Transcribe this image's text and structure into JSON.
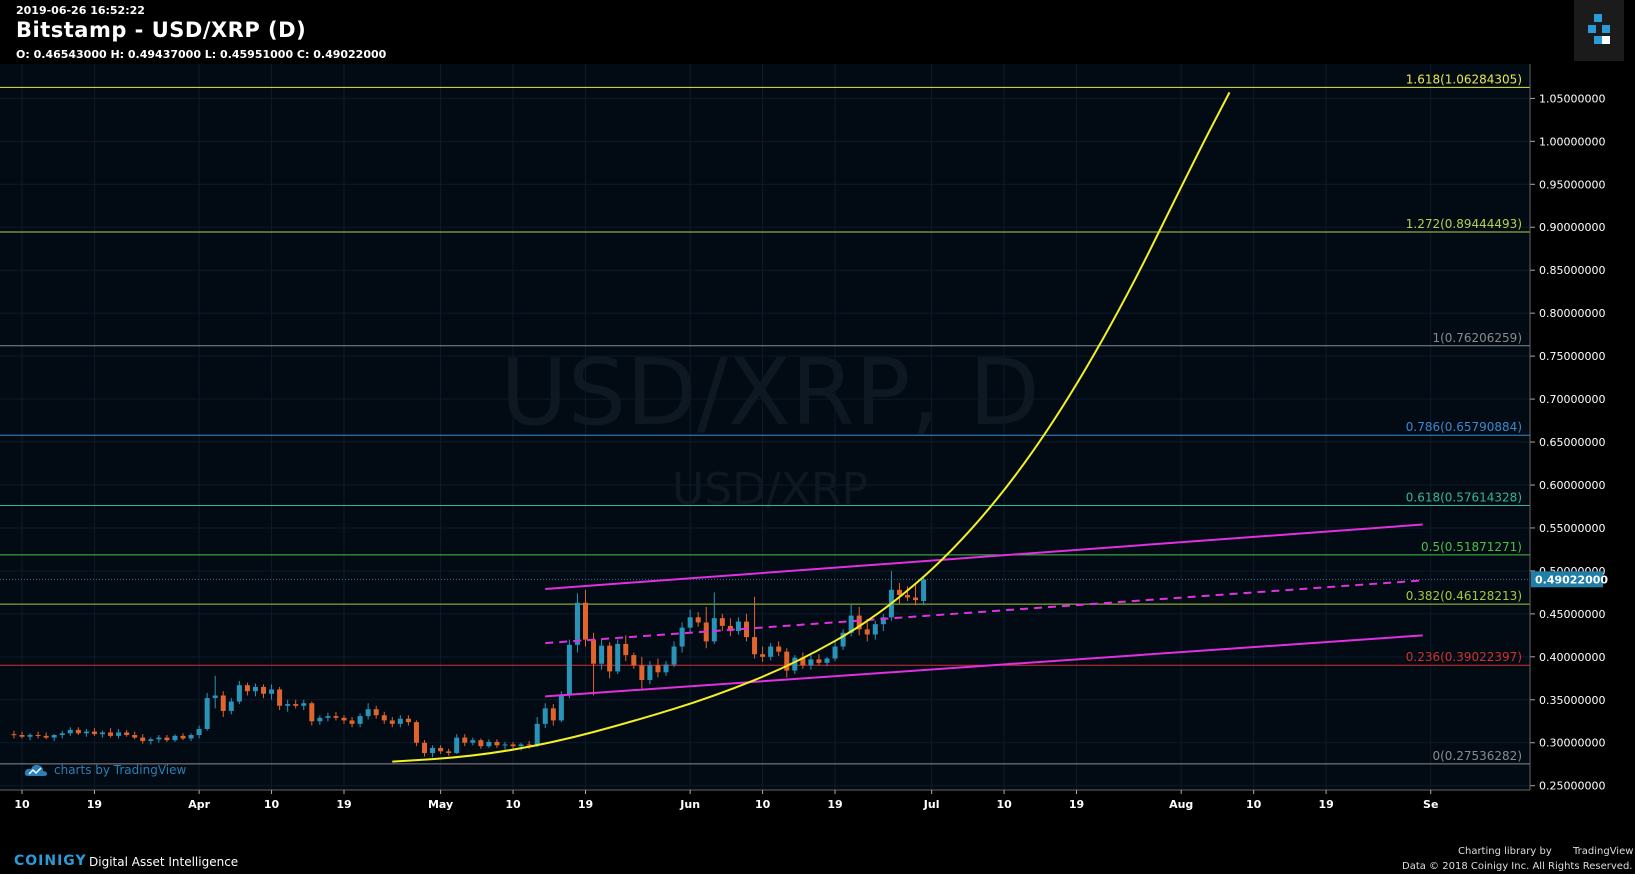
{
  "header": {
    "timestamp": "2019-06-26 16:52:22",
    "title": "Bitstamp - USD/XRP (D)",
    "ohlc": "O: 0.46543000 H: 0.49437000 L: 0.45951000 C: 0.49022000"
  },
  "footer": {
    "brand": "COINIGY",
    "tagline": "Digital Asset Intelligence",
    "charting": "Charting library by",
    "tv_brand": "TradingView",
    "copyright": "Data © 2018  Coinigy Inc. All Rights Reserved."
  },
  "colors": {
    "background": "#020b14",
    "grid": "#0d1b29",
    "bull": "#2a94b8",
    "bear": "#e0642c",
    "channel": "#e030e0",
    "curve": "#f5f022",
    "price_tag": "#1f7fa8"
  },
  "chart_data": {
    "type": "candlestick",
    "title": "Bitstamp - USD/XRP (D)",
    "watermark": "USD/XRP, D",
    "watermark_sub": "USD/XRP",
    "attribution": "charts by TradingView",
    "ylim": [
      0.245,
      1.09
    ],
    "y_ticks": [
      "1.05000000",
      "1.00000000",
      "0.95000000",
      "0.90000000",
      "0.85000000",
      "0.80000000",
      "0.75000000",
      "0.70000000",
      "0.65000000",
      "0.60000000",
      "0.55000000",
      "0.50000000",
      "0.45000000",
      "0.40000000",
      "0.35000000",
      "0.30000000",
      "0.25000000"
    ],
    "x_ticks": [
      {
        "label": "10",
        "date": "2019-03-10"
      },
      {
        "label": "19",
        "date": "2019-03-19"
      },
      {
        "label": "Apr",
        "date": "2019-04-01"
      },
      {
        "label": "10",
        "date": "2019-04-10"
      },
      {
        "label": "19",
        "date": "2019-04-19"
      },
      {
        "label": "May",
        "date": "2019-05-01"
      },
      {
        "label": "10",
        "date": "2019-05-10"
      },
      {
        "label": "19",
        "date": "2019-05-19"
      },
      {
        "label": "Jun",
        "date": "2019-06-01"
      },
      {
        "label": "10",
        "date": "2019-06-10"
      },
      {
        "label": "19",
        "date": "2019-06-19"
      },
      {
        "label": "Jul",
        "date": "2019-07-01"
      },
      {
        "label": "10",
        "date": "2019-07-10"
      },
      {
        "label": "19",
        "date": "2019-07-19"
      },
      {
        "label": "Aug",
        "date": "2019-08-01"
      },
      {
        "label": "10",
        "date": "2019-08-10"
      },
      {
        "label": "19",
        "date": "2019-08-19"
      },
      {
        "label": "Se",
        "date": "2019-09-01"
      }
    ],
    "current_price": "0.49022000",
    "fib_levels": [
      {
        "label": "1.618(1.06284305)",
        "value": 1.06284305,
        "color": "#e8e84a"
      },
      {
        "label": "1.272(0.89444493)",
        "value": 0.89444493,
        "color": "#b6d04a"
      },
      {
        "label": "1(0.76206259)",
        "value": 0.76206259,
        "color": "#8a8a8a"
      },
      {
        "label": "0.786(0.65790884)",
        "value": 0.65790884,
        "color": "#3a8ad0"
      },
      {
        "label": "0.618(0.57614328)",
        "value": 0.57614328,
        "color": "#30b898"
      },
      {
        "label": "0.5(0.51871271)",
        "value": 0.51871271,
        "color": "#48c048"
      },
      {
        "label": "0.382(0.46128213)",
        "value": 0.46128213,
        "color": "#a6c83a"
      },
      {
        "label": "0.236(0.39022397)",
        "value": 0.39022397,
        "color": "#d03030"
      },
      {
        "label": "0(0.27536282)",
        "value": 0.27536282,
        "color": "#8a8a8a"
      }
    ],
    "channel": {
      "upper": [
        {
          "date": "2019-05-14",
          "y": 0.479
        },
        {
          "date": "2019-08-31",
          "y": 0.554
        }
      ],
      "middle": [
        {
          "date": "2019-05-14",
          "y": 0.416
        },
        {
          "date": "2019-08-31",
          "y": 0.489
        }
      ],
      "lower": [
        {
          "date": "2019-05-14",
          "y": 0.354
        },
        {
          "date": "2019-08-31",
          "y": 0.425
        }
      ]
    },
    "curve": [
      {
        "date": "2019-04-25",
        "y": 0.278
      },
      {
        "date": "2019-05-05",
        "y": 0.284
      },
      {
        "date": "2019-05-15",
        "y": 0.3
      },
      {
        "date": "2019-05-25",
        "y": 0.325
      },
      {
        "date": "2019-06-04",
        "y": 0.354
      },
      {
        "date": "2019-06-14",
        "y": 0.392
      },
      {
        "date": "2019-06-24",
        "y": 0.445
      },
      {
        "date": "2019-07-04",
        "y": 0.525
      },
      {
        "date": "2019-07-14",
        "y": 0.64
      },
      {
        "date": "2019-07-24",
        "y": 0.795
      },
      {
        "date": "2019-08-03",
        "y": 0.985
      },
      {
        "date": "2019-08-07",
        "y": 1.057
      }
    ],
    "candles": [
      {
        "d": "2019-03-09",
        "o": 0.31,
        "h": 0.314,
        "l": 0.305,
        "c": 0.309
      },
      {
        "d": "2019-03-10",
        "o": 0.309,
        "h": 0.313,
        "l": 0.305,
        "c": 0.307
      },
      {
        "d": "2019-03-11",
        "o": 0.307,
        "h": 0.311,
        "l": 0.303,
        "c": 0.309
      },
      {
        "d": "2019-03-12",
        "o": 0.309,
        "h": 0.313,
        "l": 0.305,
        "c": 0.308
      },
      {
        "d": "2019-03-13",
        "o": 0.308,
        "h": 0.312,
        "l": 0.304,
        "c": 0.306
      },
      {
        "d": "2019-03-14",
        "o": 0.306,
        "h": 0.31,
        "l": 0.302,
        "c": 0.309
      },
      {
        "d": "2019-03-15",
        "o": 0.309,
        "h": 0.314,
        "l": 0.305,
        "c": 0.311
      },
      {
        "d": "2019-03-16",
        "o": 0.311,
        "h": 0.318,
        "l": 0.308,
        "c": 0.315
      },
      {
        "d": "2019-03-17",
        "o": 0.315,
        "h": 0.318,
        "l": 0.309,
        "c": 0.311
      },
      {
        "d": "2019-03-18",
        "o": 0.311,
        "h": 0.316,
        "l": 0.307,
        "c": 0.313
      },
      {
        "d": "2019-03-19",
        "o": 0.313,
        "h": 0.317,
        "l": 0.308,
        "c": 0.31
      },
      {
        "d": "2019-03-20",
        "o": 0.31,
        "h": 0.314,
        "l": 0.306,
        "c": 0.312
      },
      {
        "d": "2019-03-21",
        "o": 0.312,
        "h": 0.317,
        "l": 0.306,
        "c": 0.308
      },
      {
        "d": "2019-03-22",
        "o": 0.308,
        "h": 0.316,
        "l": 0.305,
        "c": 0.312
      },
      {
        "d": "2019-03-23",
        "o": 0.312,
        "h": 0.315,
        "l": 0.307,
        "c": 0.309
      },
      {
        "d": "2019-03-24",
        "o": 0.309,
        "h": 0.313,
        "l": 0.304,
        "c": 0.306
      },
      {
        "d": "2019-03-25",
        "o": 0.306,
        "h": 0.31,
        "l": 0.299,
        "c": 0.302
      },
      {
        "d": "2019-03-26",
        "o": 0.302,
        "h": 0.306,
        "l": 0.298,
        "c": 0.304
      },
      {
        "d": "2019-03-27",
        "o": 0.304,
        "h": 0.309,
        "l": 0.3,
        "c": 0.306
      },
      {
        "d": "2019-03-28",
        "o": 0.306,
        "h": 0.309,
        "l": 0.301,
        "c": 0.303
      },
      {
        "d": "2019-03-29",
        "o": 0.303,
        "h": 0.31,
        "l": 0.301,
        "c": 0.308
      },
      {
        "d": "2019-03-30",
        "o": 0.308,
        "h": 0.311,
        "l": 0.303,
        "c": 0.305
      },
      {
        "d": "2019-03-31",
        "o": 0.305,
        "h": 0.311,
        "l": 0.302,
        "c": 0.309
      },
      {
        "d": "2019-04-01",
        "o": 0.309,
        "h": 0.32,
        "l": 0.305,
        "c": 0.316
      },
      {
        "d": "2019-04-02",
        "o": 0.316,
        "h": 0.358,
        "l": 0.314,
        "c": 0.352
      },
      {
        "d": "2019-04-03",
        "o": 0.352,
        "h": 0.378,
        "l": 0.34,
        "c": 0.355
      },
      {
        "d": "2019-04-04",
        "o": 0.355,
        "h": 0.36,
        "l": 0.33,
        "c": 0.337
      },
      {
        "d": "2019-04-05",
        "o": 0.337,
        "h": 0.352,
        "l": 0.333,
        "c": 0.348
      },
      {
        "d": "2019-04-06",
        "o": 0.348,
        "h": 0.372,
        "l": 0.345,
        "c": 0.367
      },
      {
        "d": "2019-04-07",
        "o": 0.367,
        "h": 0.37,
        "l": 0.355,
        "c": 0.36
      },
      {
        "d": "2019-04-08",
        "o": 0.36,
        "h": 0.369,
        "l": 0.354,
        "c": 0.365
      },
      {
        "d": "2019-04-09",
        "o": 0.365,
        "h": 0.368,
        "l": 0.352,
        "c": 0.357
      },
      {
        "d": "2019-04-10",
        "o": 0.357,
        "h": 0.368,
        "l": 0.35,
        "c": 0.362
      },
      {
        "d": "2019-04-11",
        "o": 0.362,
        "h": 0.365,
        "l": 0.338,
        "c": 0.343
      },
      {
        "d": "2019-04-12",
        "o": 0.343,
        "h": 0.35,
        "l": 0.336,
        "c": 0.345
      },
      {
        "d": "2019-04-13",
        "o": 0.345,
        "h": 0.35,
        "l": 0.34,
        "c": 0.343
      },
      {
        "d": "2019-04-14",
        "o": 0.343,
        "h": 0.35,
        "l": 0.338,
        "c": 0.346
      },
      {
        "d": "2019-04-15",
        "o": 0.346,
        "h": 0.348,
        "l": 0.32,
        "c": 0.325
      },
      {
        "d": "2019-04-16",
        "o": 0.325,
        "h": 0.332,
        "l": 0.321,
        "c": 0.329
      },
      {
        "d": "2019-04-17",
        "o": 0.329,
        "h": 0.335,
        "l": 0.325,
        "c": 0.331
      },
      {
        "d": "2019-04-18",
        "o": 0.331,
        "h": 0.336,
        "l": 0.326,
        "c": 0.329
      },
      {
        "d": "2019-04-19",
        "o": 0.329,
        "h": 0.332,
        "l": 0.322,
        "c": 0.326
      },
      {
        "d": "2019-04-20",
        "o": 0.326,
        "h": 0.33,
        "l": 0.318,
        "c": 0.322
      },
      {
        "d": "2019-04-21",
        "o": 0.322,
        "h": 0.334,
        "l": 0.318,
        "c": 0.331
      },
      {
        "d": "2019-04-22",
        "o": 0.331,
        "h": 0.346,
        "l": 0.327,
        "c": 0.339
      },
      {
        "d": "2019-04-23",
        "o": 0.339,
        "h": 0.343,
        "l": 0.328,
        "c": 0.332
      },
      {
        "d": "2019-04-24",
        "o": 0.332,
        "h": 0.336,
        "l": 0.322,
        "c": 0.326
      },
      {
        "d": "2019-04-25",
        "o": 0.326,
        "h": 0.33,
        "l": 0.318,
        "c": 0.322
      },
      {
        "d": "2019-04-26",
        "o": 0.322,
        "h": 0.332,
        "l": 0.318,
        "c": 0.328
      },
      {
        "d": "2019-04-27",
        "o": 0.328,
        "h": 0.332,
        "l": 0.32,
        "c": 0.324
      },
      {
        "d": "2019-04-28",
        "o": 0.324,
        "h": 0.326,
        "l": 0.296,
        "c": 0.3
      },
      {
        "d": "2019-04-29",
        "o": 0.3,
        "h": 0.303,
        "l": 0.284,
        "c": 0.288
      },
      {
        "d": "2019-04-30",
        "o": 0.288,
        "h": 0.297,
        "l": 0.283,
        "c": 0.294
      },
      {
        "d": "2019-05-01",
        "o": 0.294,
        "h": 0.297,
        "l": 0.287,
        "c": 0.29
      },
      {
        "d": "2019-05-02",
        "o": 0.29,
        "h": 0.293,
        "l": 0.285,
        "c": 0.288
      },
      {
        "d": "2019-05-03",
        "o": 0.288,
        "h": 0.31,
        "l": 0.287,
        "c": 0.306
      },
      {
        "d": "2019-05-04",
        "o": 0.306,
        "h": 0.31,
        "l": 0.296,
        "c": 0.3
      },
      {
        "d": "2019-05-05",
        "o": 0.3,
        "h": 0.306,
        "l": 0.297,
        "c": 0.303
      },
      {
        "d": "2019-05-06",
        "o": 0.303,
        "h": 0.305,
        "l": 0.293,
        "c": 0.296
      },
      {
        "d": "2019-05-07",
        "o": 0.296,
        "h": 0.304,
        "l": 0.294,
        "c": 0.301
      },
      {
        "d": "2019-05-08",
        "o": 0.301,
        "h": 0.304,
        "l": 0.294,
        "c": 0.297
      },
      {
        "d": "2019-05-09",
        "o": 0.297,
        "h": 0.301,
        "l": 0.292,
        "c": 0.298
      },
      {
        "d": "2019-05-10",
        "o": 0.298,
        "h": 0.301,
        "l": 0.293,
        "c": 0.296
      },
      {
        "d": "2019-05-11",
        "o": 0.296,
        "h": 0.3,
        "l": 0.291,
        "c": 0.298
      },
      {
        "d": "2019-05-12",
        "o": 0.298,
        "h": 0.302,
        "l": 0.293,
        "c": 0.297
      },
      {
        "d": "2019-05-13",
        "o": 0.297,
        "h": 0.33,
        "l": 0.295,
        "c": 0.322
      },
      {
        "d": "2019-05-14",
        "o": 0.322,
        "h": 0.346,
        "l": 0.317,
        "c": 0.34
      },
      {
        "d": "2019-05-15",
        "o": 0.34,
        "h": 0.345,
        "l": 0.32,
        "c": 0.326
      },
      {
        "d": "2019-05-16",
        "o": 0.326,
        "h": 0.36,
        "l": 0.324,
        "c": 0.355
      },
      {
        "d": "2019-05-17",
        "o": 0.355,
        "h": 0.42,
        "l": 0.352,
        "c": 0.414
      },
      {
        "d": "2019-05-18",
        "o": 0.414,
        "h": 0.474,
        "l": 0.405,
        "c": 0.463
      },
      {
        "d": "2019-05-19",
        "o": 0.463,
        "h": 0.478,
        "l": 0.412,
        "c": 0.42
      },
      {
        "d": "2019-05-20",
        "o": 0.42,
        "h": 0.428,
        "l": 0.355,
        "c": 0.392
      },
      {
        "d": "2019-05-21",
        "o": 0.392,
        "h": 0.42,
        "l": 0.385,
        "c": 0.413
      },
      {
        "d": "2019-05-22",
        "o": 0.413,
        "h": 0.417,
        "l": 0.375,
        "c": 0.383
      },
      {
        "d": "2019-05-23",
        "o": 0.383,
        "h": 0.42,
        "l": 0.38,
        "c": 0.415
      },
      {
        "d": "2019-05-24",
        "o": 0.415,
        "h": 0.425,
        "l": 0.395,
        "c": 0.402
      },
      {
        "d": "2019-05-25",
        "o": 0.402,
        "h": 0.405,
        "l": 0.386,
        "c": 0.39
      },
      {
        "d": "2019-05-26",
        "o": 0.39,
        "h": 0.4,
        "l": 0.363,
        "c": 0.373
      },
      {
        "d": "2019-05-27",
        "o": 0.373,
        "h": 0.395,
        "l": 0.368,
        "c": 0.39
      },
      {
        "d": "2019-05-28",
        "o": 0.39,
        "h": 0.398,
        "l": 0.376,
        "c": 0.382
      },
      {
        "d": "2019-05-29",
        "o": 0.382,
        "h": 0.395,
        "l": 0.378,
        "c": 0.391
      },
      {
        "d": "2019-05-30",
        "o": 0.391,
        "h": 0.418,
        "l": 0.388,
        "c": 0.412
      },
      {
        "d": "2019-05-31",
        "o": 0.412,
        "h": 0.44,
        "l": 0.405,
        "c": 0.434
      },
      {
        "d": "2019-06-01",
        "o": 0.434,
        "h": 0.455,
        "l": 0.428,
        "c": 0.446
      },
      {
        "d": "2019-06-02",
        "o": 0.446,
        "h": 0.452,
        "l": 0.435,
        "c": 0.44
      },
      {
        "d": "2019-06-03",
        "o": 0.44,
        "h": 0.458,
        "l": 0.41,
        "c": 0.418
      },
      {
        "d": "2019-06-04",
        "o": 0.418,
        "h": 0.475,
        "l": 0.415,
        "c": 0.445
      },
      {
        "d": "2019-06-05",
        "o": 0.445,
        "h": 0.45,
        "l": 0.43,
        "c": 0.436
      },
      {
        "d": "2019-06-06",
        "o": 0.436,
        "h": 0.445,
        "l": 0.424,
        "c": 0.43
      },
      {
        "d": "2019-06-07",
        "o": 0.43,
        "h": 0.446,
        "l": 0.426,
        "c": 0.441
      },
      {
        "d": "2019-06-08",
        "o": 0.441,
        "h": 0.45,
        "l": 0.418,
        "c": 0.423
      },
      {
        "d": "2019-06-09",
        "o": 0.423,
        "h": 0.47,
        "l": 0.398,
        "c": 0.403
      },
      {
        "d": "2019-06-10",
        "o": 0.403,
        "h": 0.412,
        "l": 0.394,
        "c": 0.4
      },
      {
        "d": "2019-06-11",
        "o": 0.4,
        "h": 0.416,
        "l": 0.396,
        "c": 0.412
      },
      {
        "d": "2019-06-12",
        "o": 0.412,
        "h": 0.418,
        "l": 0.401,
        "c": 0.406
      },
      {
        "d": "2019-06-13",
        "o": 0.406,
        "h": 0.41,
        "l": 0.376,
        "c": 0.384
      },
      {
        "d": "2019-06-14",
        "o": 0.384,
        "h": 0.402,
        "l": 0.38,
        "c": 0.399
      },
      {
        "d": "2019-06-15",
        "o": 0.399,
        "h": 0.405,
        "l": 0.386,
        "c": 0.39
      },
      {
        "d": "2019-06-16",
        "o": 0.39,
        "h": 0.402,
        "l": 0.385,
        "c": 0.397
      },
      {
        "d": "2019-06-17",
        "o": 0.397,
        "h": 0.403,
        "l": 0.39,
        "c": 0.393
      },
      {
        "d": "2019-06-18",
        "o": 0.393,
        "h": 0.4,
        "l": 0.389,
        "c": 0.398
      },
      {
        "d": "2019-06-19",
        "o": 0.398,
        "h": 0.418,
        "l": 0.395,
        "c": 0.412
      },
      {
        "d": "2019-06-20",
        "o": 0.412,
        "h": 0.432,
        "l": 0.408,
        "c": 0.428
      },
      {
        "d": "2019-06-21",
        "o": 0.428,
        "h": 0.462,
        "l": 0.424,
        "c": 0.448
      },
      {
        "d": "2019-06-22",
        "o": 0.448,
        "h": 0.458,
        "l": 0.425,
        "c": 0.432
      },
      {
        "d": "2019-06-23",
        "o": 0.432,
        "h": 0.44,
        "l": 0.418,
        "c": 0.426
      },
      {
        "d": "2019-06-24",
        "o": 0.426,
        "h": 0.442,
        "l": 0.42,
        "c": 0.438
      },
      {
        "d": "2019-06-25",
        "o": 0.438,
        "h": 0.45,
        "l": 0.43,
        "c": 0.446
      },
      {
        "d": "2019-06-26",
        "o": 0.446,
        "h": 0.5,
        "l": 0.442,
        "c": 0.478
      },
      {
        "d": "2019-06-27",
        "o": 0.478,
        "h": 0.486,
        "l": 0.462,
        "c": 0.472
      },
      {
        "d": "2019-06-28",
        "o": 0.472,
        "h": 0.482,
        "l": 0.465,
        "c": 0.469
      },
      {
        "d": "2019-06-29",
        "o": 0.469,
        "h": 0.484,
        "l": 0.46,
        "c": 0.466
      },
      {
        "d": "2019-06-30",
        "o": 0.465,
        "h": 0.494,
        "l": 0.46,
        "c": 0.49
      }
    ]
  }
}
